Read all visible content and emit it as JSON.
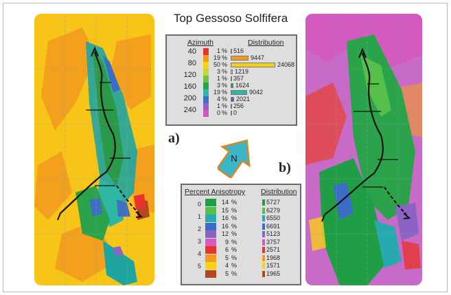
{
  "figure": {
    "title": "Top Gessoso Solfifera",
    "label_a": "a)",
    "label_b": "b)",
    "north_label": "N"
  },
  "azimuth_panel": {
    "left_header": "Azimuth",
    "right_header": "Distribution",
    "axis_labels": [
      "40",
      "80",
      "120",
      "160",
      "200",
      "240"
    ],
    "rows": [
      {
        "pct": "1",
        "unit": "%",
        "count": "516",
        "color": "#e8332c",
        "value": 516
      },
      {
        "pct": "19",
        "unit": "%",
        "count": "9447",
        "color": "#f49b1f",
        "value": 9447
      },
      {
        "pct": "50",
        "unit": "%",
        "count": "24068",
        "color": "#f7d117",
        "value": 24068
      },
      {
        "pct": "3",
        "unit": "%",
        "count": "1219",
        "color": "#c3d63a",
        "value": 1219
      },
      {
        "pct": "1",
        "unit": "%",
        "count": "357",
        "color": "#6fbf4a",
        "value": 357
      },
      {
        "pct": "3",
        "unit": "%",
        "count": "1624",
        "color": "#2aa34a",
        "value": 1624
      },
      {
        "pct": "19",
        "unit": "%",
        "count": "9042",
        "color": "#2fb7a6",
        "value": 9042
      },
      {
        "pct": "4",
        "unit": "%",
        "count": "2021",
        "color": "#3f6fc2",
        "value": 2021
      },
      {
        "pct": "1",
        "unit": "%",
        "count": "256",
        "color": "#8e63c4",
        "value": 256
      },
      {
        "pct": "0",
        "unit": "%",
        "count": "0",
        "color": "#cc59c0",
        "value": 0
      }
    ]
  },
  "anisotropy_panel": {
    "left_header": "Percent Anisotropy",
    "right_header": "Distribution",
    "axis_labels": [
      "0",
      "1",
      "2",
      "3",
      "4",
      "5"
    ],
    "rows": [
      {
        "pct": "14",
        "unit": "%",
        "count": "5727",
        "color": "#1f9e45"
      },
      {
        "pct": "15",
        "unit": "%",
        "count": "6279",
        "color": "#55bf4a"
      },
      {
        "pct": "16",
        "unit": "%",
        "count": "6550",
        "color": "#27a9b0"
      },
      {
        "pct": "16",
        "unit": "%",
        "count": "6691",
        "color": "#3b6dc4"
      },
      {
        "pct": "12",
        "unit": "%",
        "count": "5123",
        "color": "#8a63c4"
      },
      {
        "pct": "9",
        "unit": "%",
        "count": "3757",
        "color": "#d65cc0"
      },
      {
        "pct": "6",
        "unit": "%",
        "count": "2571",
        "color": "#e8332c"
      },
      {
        "pct": "5",
        "unit": "%",
        "count": "1968",
        "color": "#f49b1f"
      },
      {
        "pct": "4",
        "unit": "%",
        "count": "1571",
        "color": "#f7d117"
      },
      {
        "pct": "5",
        "unit": "%",
        "count": "1965",
        "color": "#b5471e"
      }
    ]
  }
}
